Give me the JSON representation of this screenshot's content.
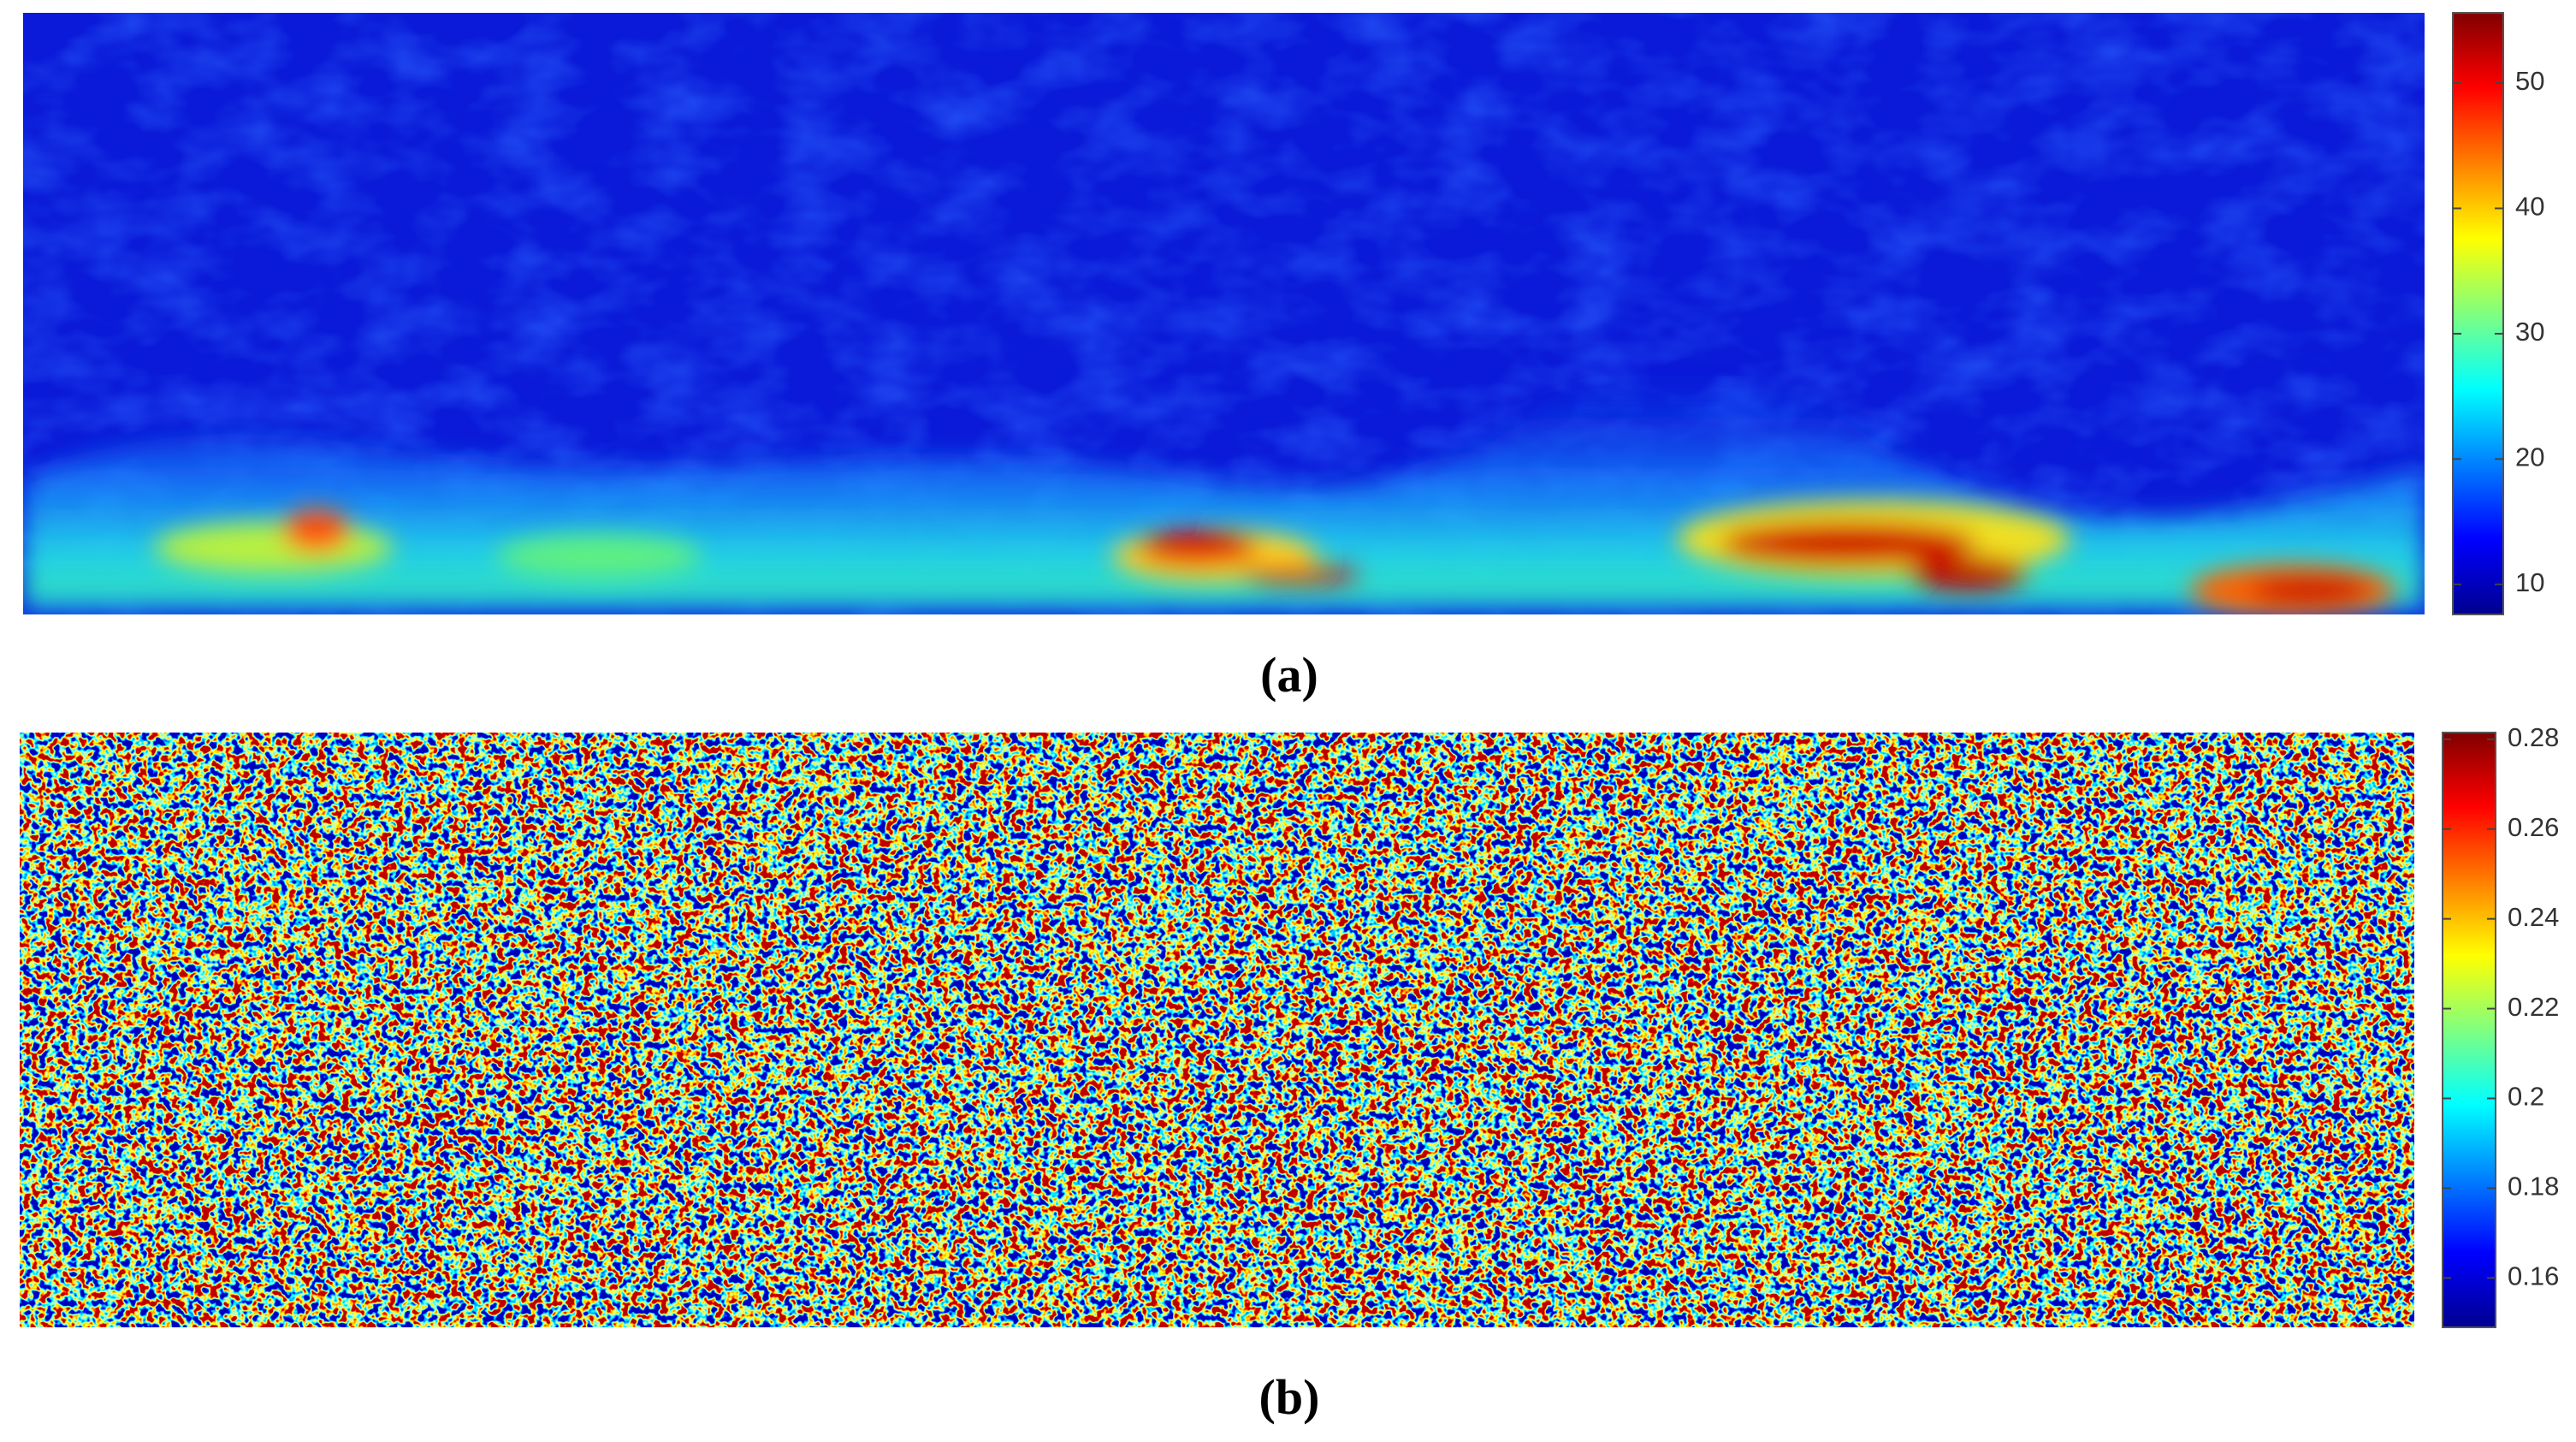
{
  "chart_data": [
    {
      "type": "heatmap",
      "label": "(a)",
      "colorbar": {
        "colormap": "jet",
        "ylim": [
          7.6,
          55.6
        ],
        "yticks": [
          10,
          20,
          30,
          40,
          50
        ]
      }
    },
    {
      "type": "heatmap",
      "label": "(b)",
      "colorbar": {
        "colormap": "jet",
        "ylim": [
          0.149,
          0.2815
        ],
        "yticks": [
          0.16,
          0.18,
          0.2,
          0.22,
          0.24,
          0.26,
          0.28
        ]
      }
    }
  ]
}
